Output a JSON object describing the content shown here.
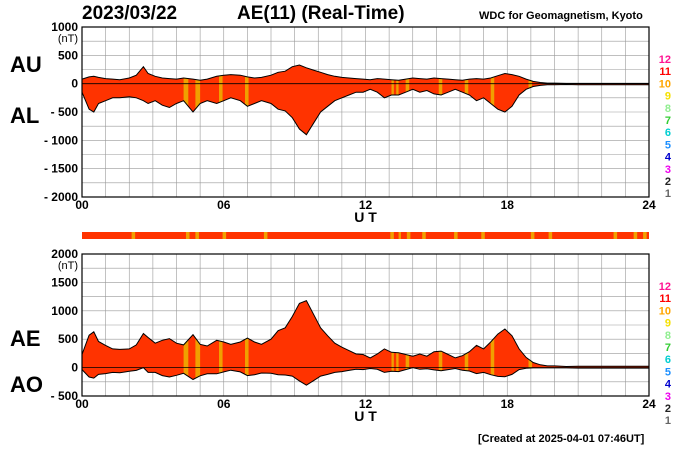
{
  "header": {
    "date": "2023/03/22",
    "title": "AE(11) (Real-Time)",
    "source": "WDC for Geomagnetism, Kyoto"
  },
  "footer": {
    "created": "[Created at 2025-04-01 07:46UT]"
  },
  "colors": {
    "fill": "#ff3300",
    "highlight": "#f0a000",
    "curve": "#000000",
    "grid": "#999999",
    "scale": [
      "#ff1493",
      "#ff0000",
      "#ffa500",
      "#f5e000",
      "#90ee90",
      "#32cd32",
      "#00ced1",
      "#1e90ff",
      "#0000cd",
      "#ee00ee",
      "#222222",
      "#666666",
      "#cccccc"
    ]
  },
  "chart_data": [
    {
      "type": "area",
      "panel": "top",
      "series_labels": [
        "AU",
        "AL"
      ],
      "x_ticks": [
        "00",
        "06",
        "12",
        "18",
        "24"
      ],
      "x_tick_values": [
        0,
        6,
        12,
        18,
        24
      ],
      "xlim": [
        0,
        24
      ],
      "xlabel": "U T",
      "ylim": [
        -2000,
        1000
      ],
      "y_ticks": [
        1000,
        500,
        0,
        -500,
        -1000,
        -1500,
        -2000
      ],
      "y_tick_labels": [
        "1000",
        "500",
        "0",
        "- 500",
        "- 1000",
        "- 1500",
        "- 2000"
      ],
      "y_unit": "(nT)",
      "x": [
        0,
        0.3,
        0.5,
        0.7,
        1.0,
        1.3,
        1.6,
        2.0,
        2.3,
        2.6,
        2.8,
        3.1,
        3.4,
        3.7,
        4.0,
        4.3,
        4.7,
        5.0,
        5.3,
        5.7,
        6.0,
        6.3,
        6.7,
        7.0,
        7.3,
        7.6,
        8.0,
        8.3,
        8.6,
        8.9,
        9.2,
        9.5,
        9.8,
        10.1,
        10.4,
        10.7,
        11.0,
        11.3,
        11.6,
        11.9,
        12.2,
        12.5,
        12.8,
        13.1,
        13.4,
        13.7,
        14.0,
        14.3,
        14.6,
        14.9,
        15.2,
        15.5,
        15.8,
        16.1,
        16.4,
        16.7,
        17.0,
        17.3,
        17.6,
        17.9,
        18.2,
        18.5,
        18.8,
        19.1,
        19.4,
        19.7,
        20.0,
        20.5,
        21.0,
        22.0,
        23.0,
        24.0
      ],
      "au": [
        80,
        120,
        130,
        110,
        90,
        80,
        70,
        100,
        150,
        300,
        180,
        130,
        100,
        90,
        80,
        100,
        80,
        60,
        80,
        130,
        150,
        160,
        150,
        120,
        100,
        110,
        150,
        200,
        220,
        300,
        330,
        280,
        240,
        200,
        160,
        130,
        110,
        100,
        90,
        80,
        70,
        90,
        80,
        70,
        60,
        80,
        100,
        90,
        80,
        100,
        90,
        80,
        70,
        60,
        80,
        90,
        80,
        100,
        140,
        180,
        160,
        130,
        80,
        40,
        20,
        10,
        10,
        5,
        5,
        5,
        5,
        5
      ],
      "al": [
        -150,
        -450,
        -500,
        -350,
        -300,
        -250,
        -250,
        -230,
        -250,
        -300,
        -350,
        -300,
        -380,
        -420,
        -350,
        -300,
        -500,
        -350,
        -300,
        -350,
        -300,
        -250,
        -300,
        -400,
        -350,
        -300,
        -350,
        -450,
        -480,
        -600,
        -800,
        -900,
        -700,
        -500,
        -400,
        -300,
        -250,
        -200,
        -150,
        -150,
        -100,
        -150,
        -250,
        -200,
        -200,
        -150,
        -100,
        -150,
        -120,
        -180,
        -200,
        -150,
        -100,
        -150,
        -200,
        -300,
        -250,
        -350,
        -450,
        -500,
        -400,
        -200,
        -100,
        -50,
        -30,
        -20,
        -20,
        -15,
        -20,
        -20,
        -20,
        -20
      ],
      "highlight_intervals": [
        [
          4.3,
          4.5
        ],
        [
          4.8,
          5.0
        ],
        [
          5.8,
          5.95
        ],
        [
          6.9,
          7.05
        ],
        [
          13.1,
          13.2
        ],
        [
          13.3,
          13.4
        ],
        [
          13.7,
          13.85
        ],
        [
          15.1,
          15.25
        ],
        [
          16.2,
          16.35
        ],
        [
          17.3,
          17.45
        ],
        [
          18.9,
          19.05
        ]
      ]
    },
    {
      "type": "area",
      "panel": "bottom",
      "series_labels": [
        "AE",
        "AO"
      ],
      "x_ticks": [
        "00",
        "06",
        "12",
        "18",
        "24"
      ],
      "x_tick_values": [
        0,
        6,
        12,
        18,
        24
      ],
      "xlim": [
        0,
        24
      ],
      "xlabel": "U T",
      "ylim": [
        -500,
        2000
      ],
      "y_ticks": [
        2000,
        1500,
        1000,
        500,
        0,
        -500
      ],
      "y_tick_labels": [
        "2000",
        "1500",
        "1000",
        "500",
        "0",
        "- 500"
      ],
      "y_unit": "(nT)",
      "x": [
        0,
        0.3,
        0.5,
        0.7,
        1.0,
        1.3,
        1.6,
        2.0,
        2.3,
        2.6,
        2.8,
        3.1,
        3.4,
        3.7,
        4.0,
        4.3,
        4.7,
        5.0,
        5.3,
        5.7,
        6.0,
        6.3,
        6.7,
        7.0,
        7.3,
        7.6,
        8.0,
        8.3,
        8.6,
        8.9,
        9.2,
        9.5,
        9.8,
        10.1,
        10.4,
        10.7,
        11.0,
        11.3,
        11.6,
        11.9,
        12.2,
        12.5,
        12.8,
        13.1,
        13.4,
        13.7,
        14.0,
        14.3,
        14.6,
        14.9,
        15.2,
        15.5,
        15.8,
        16.1,
        16.4,
        16.7,
        17.0,
        17.3,
        17.6,
        17.9,
        18.2,
        18.5,
        18.8,
        19.1,
        19.4,
        19.7,
        20.0,
        20.5,
        21.0,
        22.0,
        23.0,
        24.0
      ],
      "ae": [
        230,
        570,
        630,
        460,
        390,
        330,
        320,
        330,
        400,
        600,
        530,
        430,
        480,
        510,
        430,
        400,
        580,
        410,
        380,
        480,
        450,
        410,
        450,
        520,
        450,
        410,
        500,
        650,
        700,
        900,
        1130,
        1180,
        940,
        700,
        560,
        430,
        360,
        300,
        240,
        230,
        170,
        240,
        330,
        270,
        260,
        230,
        200,
        240,
        200,
        280,
        290,
        230,
        170,
        210,
        280,
        390,
        330,
        450,
        590,
        680,
        560,
        330,
        180,
        90,
        50,
        30,
        30,
        20,
        25,
        25,
        25,
        25
      ],
      "ao": [
        -35,
        -165,
        -185,
        -120,
        -105,
        -85,
        -90,
        -65,
        -50,
        0,
        -85,
        -85,
        -140,
        -165,
        -135,
        -100,
        -210,
        -145,
        -110,
        -110,
        -75,
        -45,
        -75,
        -140,
        -125,
        -95,
        -100,
        -125,
        -130,
        -150,
        -235,
        -310,
        -230,
        -150,
        -120,
        -85,
        -70,
        -50,
        -30,
        -35,
        -15,
        -30,
        -85,
        -65,
        -70,
        -35,
        0,
        -30,
        -20,
        -40,
        -55,
        -35,
        -15,
        -45,
        -60,
        -105,
        -85,
        -125,
        -155,
        -160,
        -120,
        -35,
        -10,
        -5,
        -5,
        -5,
        -5,
        -5,
        -8,
        -8,
        -8,
        -8
      ],
      "highlight_intervals": [
        [
          4.3,
          4.5
        ],
        [
          4.8,
          5.0
        ],
        [
          5.8,
          5.95
        ],
        [
          6.9,
          7.05
        ],
        [
          13.1,
          13.2
        ],
        [
          13.3,
          13.4
        ],
        [
          13.7,
          13.85
        ],
        [
          15.1,
          15.25
        ],
        [
          16.2,
          16.35
        ],
        [
          17.3,
          17.45
        ],
        [
          18.9,
          19.05
        ]
      ]
    }
  ],
  "strip": {
    "highlight_intervals": [
      [
        2.1,
        2.25
      ],
      [
        4.4,
        4.55
      ],
      [
        4.8,
        4.95
      ],
      [
        5.95,
        6.1
      ],
      [
        7.7,
        7.85
      ],
      [
        13.05,
        13.2
      ],
      [
        13.4,
        13.5
      ],
      [
        13.75,
        13.9
      ],
      [
        14.4,
        14.55
      ],
      [
        15.75,
        15.9
      ],
      [
        16.9,
        17.05
      ],
      [
        19.0,
        19.15
      ],
      [
        19.75,
        19.9
      ],
      [
        22.5,
        22.65
      ],
      [
        23.35,
        23.5
      ],
      [
        23.75,
        23.9
      ]
    ]
  },
  "scale_labels": [
    "12",
    "11",
    "10",
    "9",
    "8",
    "7",
    "6",
    "5",
    "4",
    "3",
    "2",
    "1"
  ]
}
